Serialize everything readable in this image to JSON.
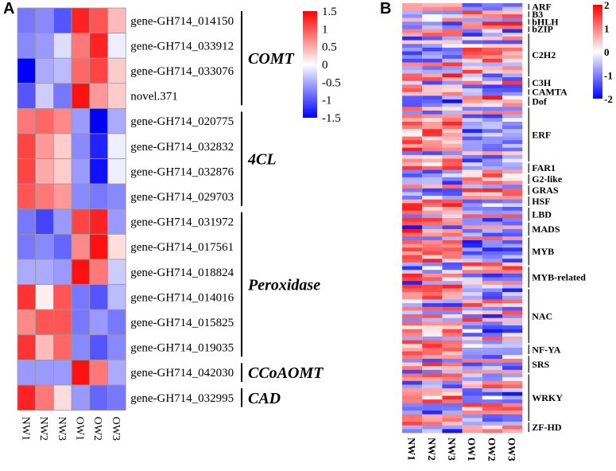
{
  "chart_data": [
    {
      "panel": "A",
      "type": "heatmap",
      "columns": [
        "NW1",
        "NW2",
        "NW3",
        "OW1",
        "OW2",
        "OW3"
      ],
      "rows": [
        {
          "gene": "gene-GH714_014150",
          "values": [
            -0.8,
            -0.7,
            -1.0,
            1.3,
            1.0,
            0.4
          ]
        },
        {
          "gene": "gene-GH714_033912",
          "values": [
            -0.7,
            -0.6,
            -0.2,
            0.8,
            1.3,
            -0.1
          ]
        },
        {
          "gene": "gene-GH714_033076",
          "values": [
            -1.5,
            -0.5,
            -0.4,
            0.9,
            1.1,
            0.3
          ]
        },
        {
          "gene": "gene-GH714_novel371",
          "display": "novel.371",
          "values": [
            -1.0,
            -0.3,
            -0.8,
            1.4,
            0.6,
            0.3
          ]
        },
        {
          "gene": "gene-GH714_020775",
          "values": [
            0.8,
            0.9,
            0.7,
            -0.6,
            -1.5,
            -0.5
          ]
        },
        {
          "gene": "gene-GH714_032832",
          "values": [
            1.1,
            0.6,
            0.3,
            -0.7,
            -1.3,
            -0.1
          ]
        },
        {
          "gene": "gene-GH714_032876",
          "values": [
            1.1,
            0.5,
            0.3,
            -0.6,
            -1.4,
            -0.1
          ]
        },
        {
          "gene": "gene-GH714_029703",
          "values": [
            1.0,
            0.8,
            0.6,
            -0.7,
            -0.8,
            -0.7
          ]
        },
        {
          "gene": "gene-GH714_031972",
          "values": [
            -0.8,
            -1.1,
            -0.6,
            1.1,
            1.3,
            -0.6
          ]
        },
        {
          "gene": "gene-GH714_017561",
          "values": [
            -0.8,
            -0.7,
            -0.9,
            0.7,
            1.4,
            0.2
          ]
        },
        {
          "gene": "gene-GH714_018824",
          "values": [
            -0.5,
            -0.5,
            -0.6,
            1.4,
            0.8,
            -0.3
          ]
        },
        {
          "gene": "gene-GH714_014016",
          "values": [
            1.2,
            0.1,
            1.0,
            -0.8,
            -1.0,
            -0.4
          ]
        },
        {
          "gene": "gene-GH714_015825",
          "values": [
            0.7,
            1.0,
            1.0,
            -0.8,
            -0.6,
            -0.8
          ]
        },
        {
          "gene": "gene-GH714_019035",
          "values": [
            1.2,
            0.4,
            0.9,
            -0.7,
            -1.0,
            -0.7
          ]
        },
        {
          "gene": "gene-GH714_042030",
          "values": [
            -0.6,
            -0.6,
            -0.6,
            1.4,
            0.8,
            -0.5
          ]
        },
        {
          "gene": "gene-GH714_032995",
          "values": [
            1.3,
            0.8,
            0.2,
            -0.6,
            -0.9,
            -0.8
          ]
        }
      ],
      "groups": [
        {
          "name": "COMT",
          "rows": [
            0,
            3
          ]
        },
        {
          "name": "4CL",
          "rows": [
            4,
            7
          ]
        },
        {
          "name": "Peroxidase",
          "rows": [
            8,
            13
          ]
        },
        {
          "name": "CCoAOMT",
          "rows": [
            14,
            14
          ]
        },
        {
          "name": "CAD",
          "rows": [
            15,
            15
          ]
        }
      ],
      "color_scale": {
        "min": -1.5,
        "max": 1.5,
        "ticks": [
          "1.5",
          "1",
          "0.5",
          "0",
          "-0.5",
          "-1",
          "-1.5"
        ],
        "low_color": "#0000ff",
        "mid_color": "#ffffff",
        "high_color": "#ff0000"
      }
    },
    {
      "panel": "B",
      "type": "heatmap",
      "columns": [
        "NW1",
        "NW2",
        "NW3",
        "OW1",
        "OW2",
        "OW3"
      ],
      "families": [
        {
          "name": "ARF",
          "n": 2
        },
        {
          "name": "B3",
          "n": 2
        },
        {
          "name": "bHLH",
          "n": 2
        },
        {
          "name": "bZIP",
          "n": 2
        },
        {
          "name": "C2H2",
          "n": 12
        },
        {
          "name": "C3H",
          "n": 3
        },
        {
          "name": "CAMTA",
          "n": 2
        },
        {
          "name": "Dof",
          "n": 3
        },
        {
          "name": "ERF",
          "n": 15
        },
        {
          "name": "FAR1",
          "n": 3
        },
        {
          "name": "G2-like",
          "n": 3
        },
        {
          "name": "GRAS",
          "n": 3
        },
        {
          "name": "HSF",
          "n": 3
        },
        {
          "name": "LBD",
          "n": 4
        },
        {
          "name": "MADS",
          "n": 4
        },
        {
          "name": "MYB",
          "n": 8
        },
        {
          "name": "MYB-related",
          "n": 6
        },
        {
          "name": "NAC",
          "n": 15
        },
        {
          "name": "NF-YA",
          "n": 3
        },
        {
          "name": "SRS",
          "n": 5
        },
        {
          "name": "WRKY",
          "n": 13
        },
        {
          "name": "ZF-HD",
          "n": 3
        }
      ],
      "value_range": [
        -2,
        2
      ],
      "color_scale": {
        "min": -2,
        "max": 2,
        "ticks": [
          "2",
          "1",
          "0",
          "-1",
          "-2"
        ],
        "low_color": "#0000ff",
        "mid_color": "#ffffff",
        "high_color": "#ff0000"
      }
    }
  ],
  "panel_labels": {
    "a": "A",
    "b": "B"
  }
}
